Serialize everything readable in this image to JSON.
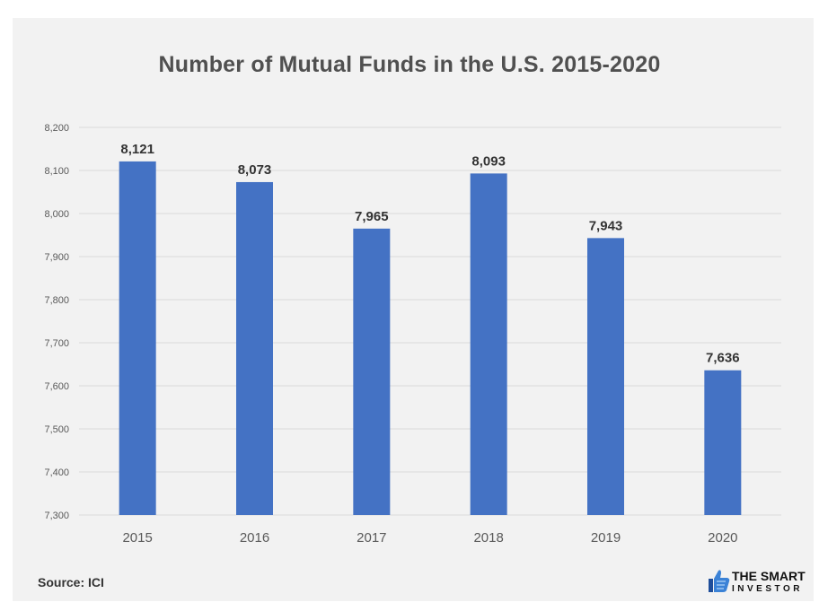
{
  "chart_data": {
    "type": "bar",
    "title": "Number of Mutual Funds in the U.S. 2015-2020",
    "categories": [
      "2015",
      "2016",
      "2017",
      "2018",
      "2019",
      "2020"
    ],
    "values": [
      8121,
      8073,
      7965,
      8093,
      7943,
      7636
    ],
    "data_labels": [
      "8,121",
      "8,073",
      "7,965",
      "8,093",
      "7,943",
      "7,636"
    ],
    "ylim": [
      7300,
      8200
    ],
    "yticks": [
      7300,
      7400,
      7500,
      7600,
      7700,
      7800,
      7900,
      8000,
      8100,
      8200
    ],
    "ytick_labels": [
      "7,300",
      "7,400",
      "7,500",
      "7,600",
      "7,700",
      "7,800",
      "7,900",
      "8,000",
      "8,100",
      "8,200"
    ],
    "bar_color": "#4472c4",
    "grid": true,
    "legend": "none"
  },
  "footer": {
    "source": "Source: ICI",
    "logo_line1": "THE SMART",
    "logo_line2": "INVESTOR"
  }
}
